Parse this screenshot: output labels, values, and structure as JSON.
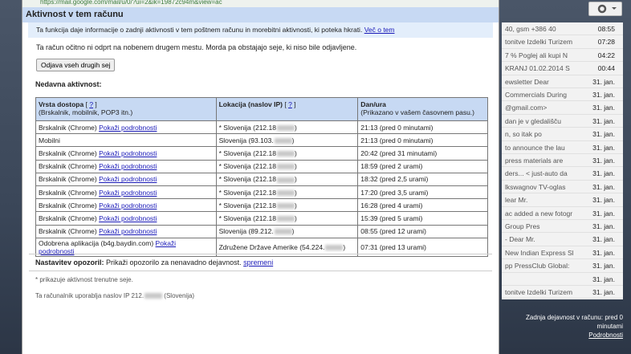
{
  "url": "https://mail.google.com/mail/u/0/?ui=2&ik=19872c94m&view=ac",
  "dialog": {
    "title": "Aktivnost v tem računu",
    "info": "Ta funkcija daje informacije o zadnji aktivnosti v tem poštnem računu in morebitni aktivnosti, ki poteka hkrati.",
    "info_link": "Več o tem",
    "note": "Ta račun očitno ni odprt na nobenem drugem mestu. Morda pa obstajajo seje, ki niso bile odjavljene.",
    "button": "Odjava vseh drugih sej",
    "recent_heading": "Nedavna aktivnost:",
    "table": {
      "headers": [
        {
          "title": "Vrsta dostopa",
          "help": "?",
          "sub": "(Brskalnik, mobilnik, POP3 itn.)"
        },
        {
          "title": "Lokacija (naslov IP)",
          "help": "?"
        },
        {
          "title": "Dan/ura",
          "sub": "(Prikazano v vašem časovnem pasu.)"
        }
      ],
      "rows": [
        {
          "access": "Brskalnik (Chrome)",
          "link": "Pokaži podrobnosti",
          "location": "* Slovenija (212.18",
          "time": "21:13 (pred 0 minutami)"
        },
        {
          "access": "Mobilni",
          "location": "Slovenija (93.103.",
          "time": "21:13 (pred 0 minutami)"
        },
        {
          "access": "Brskalnik (Chrome)",
          "link": "Pokaži podrobnosti",
          "location": "* Slovenija (212.18",
          "time": "20:42 (pred 31 minutami)"
        },
        {
          "access": "Brskalnik (Chrome)",
          "link": "Pokaži podrobnosti",
          "location": "* Slovenija (212.18",
          "time": "18:59 (pred 2 urami)"
        },
        {
          "access": "Brskalnik (Chrome)",
          "link": "Pokaži podrobnosti",
          "location": "* Slovenija (212.18",
          "time": "18:32 (pred 2,5 urami)"
        },
        {
          "access": "Brskalnik (Chrome)",
          "link": "Pokaži podrobnosti",
          "location": "* Slovenija (212.18",
          "time": "17:20 (pred 3,5 urami)"
        },
        {
          "access": "Brskalnik (Chrome)",
          "link": "Pokaži podrobnosti",
          "location": "* Slovenija (212.18",
          "time": "16:28 (pred 4 urami)"
        },
        {
          "access": "Brskalnik (Chrome)",
          "link": "Pokaži podrobnosti",
          "location": "* Slovenija (212.18",
          "time": "15:39 (pred 5 urami)"
        },
        {
          "access": "Brskalnik (Chrome)",
          "link": "Pokaži podrobnosti",
          "location": "Slovenija (89.212.",
          "time": "08:55 (pred 12 urami)"
        },
        {
          "access": "Odobrena aplikacija (b4g.baydin.com)",
          "link": "Pokaži podrobnosti",
          "location": "Združene Države Amerike (54.224.",
          "time": "07:31 (pred 13 urami)"
        }
      ]
    },
    "alerts_label": "Nastavitev opozoril:",
    "alerts_text": "Prikaži opozorilo za nenavadno dejavnost.",
    "alerts_link": "spremeni",
    "footnote": "* prikazuje aktivnost trenutne seje.",
    "ip_note": "Ta računalnik uporablja naslov IP 212.",
    "ip_country": "(Slovenija)"
  },
  "inbox": [
    {
      "snippet": "40, gsm +386 40",
      "time": "08:55"
    },
    {
      "snippet": "tonitve Izdelki Turizem",
      "time": "07:28"
    },
    {
      "snippet": "7 % Poglej ali kupi N",
      "time": "04:22"
    },
    {
      "snippet": "KRANJ 01.02.2014 S",
      "time": "00:44"
    },
    {
      "snippet": "ewsletter Dear",
      "time": "31. jan."
    },
    {
      "snippet": "Commercials During",
      "time": "31. jan."
    },
    {
      "snippet": "@gmail.com>",
      "time": "31. jan."
    },
    {
      "snippet": "dan je v gledališču",
      "time": "31. jan."
    },
    {
      "snippet": "n, so itak po",
      "time": "31. jan."
    },
    {
      "snippet": "to announce the lau",
      "time": "31. jan."
    },
    {
      "snippet": "press materials are",
      "time": "31. jan."
    },
    {
      "snippet": "ders... < just-auto da",
      "time": "31. jan."
    },
    {
      "snippet": "lkswagnov TV-oglas",
      "time": "31. jan."
    },
    {
      "snippet": "lear Mr.",
      "time": "31. jan."
    },
    {
      "snippet": "ac added a new fotogr",
      "time": "31. jan."
    },
    {
      "snippet": "Group Pres",
      "time": "31. jan."
    },
    {
      "snippet": "- Dear Mr.",
      "time": "31. jan."
    },
    {
      "snippet": "New Indian Express Sl",
      "time": "31. jan."
    },
    {
      "snippet": "pp PressClub Global:",
      "time": "31. jan."
    },
    {
      "snippet": "",
      "time": "31. jan."
    },
    {
      "snippet": "tonitve Izdelki Turizem",
      "time": "31. jan."
    }
  ],
  "last_activity": "Zadnja dejavnost v računu: pred 0 minutami",
  "details_link": "Podrobnosti"
}
